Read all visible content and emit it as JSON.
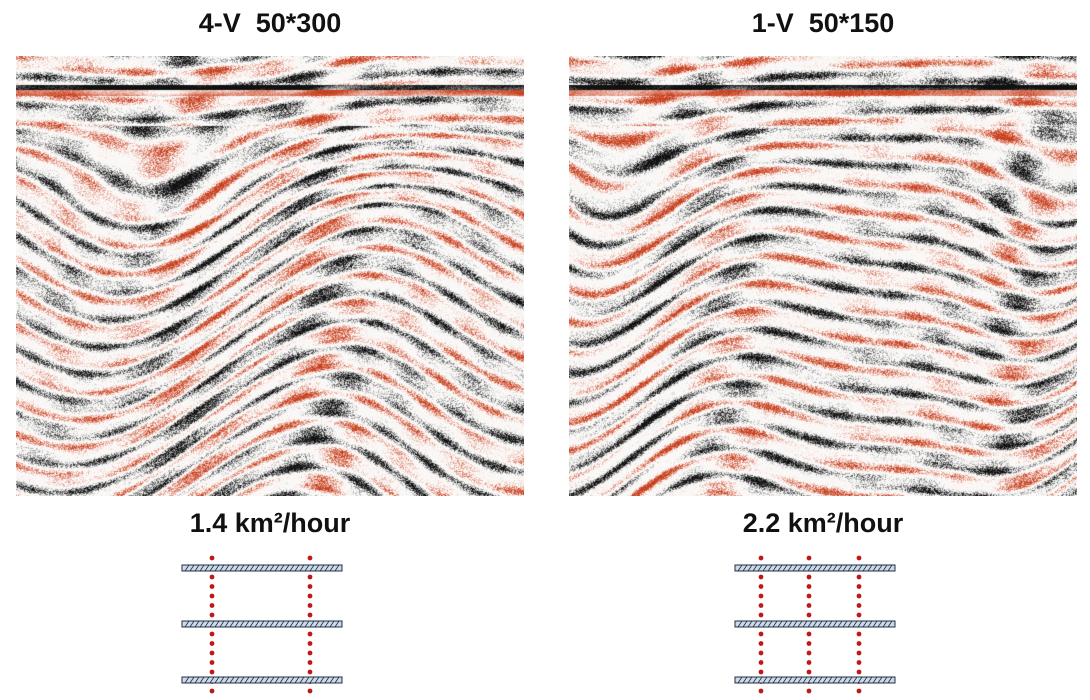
{
  "colors": {
    "negative_amplitude": "#111111",
    "positive_amplitude": "#c8401e",
    "receiver_dot": "#c01818",
    "line_fill": "#cdd9e6",
    "line_stroke": "#1f2f46"
  },
  "panels": [
    {
      "title": "4-V  50*300",
      "rate": "1.4 km²/hour",
      "vibrator_lines": 2,
      "seed": 11
    },
    {
      "title": "1-V  50*150",
      "rate": "2.2 km²/hour",
      "vibrator_lines": 3,
      "seed": 29
    }
  ]
}
